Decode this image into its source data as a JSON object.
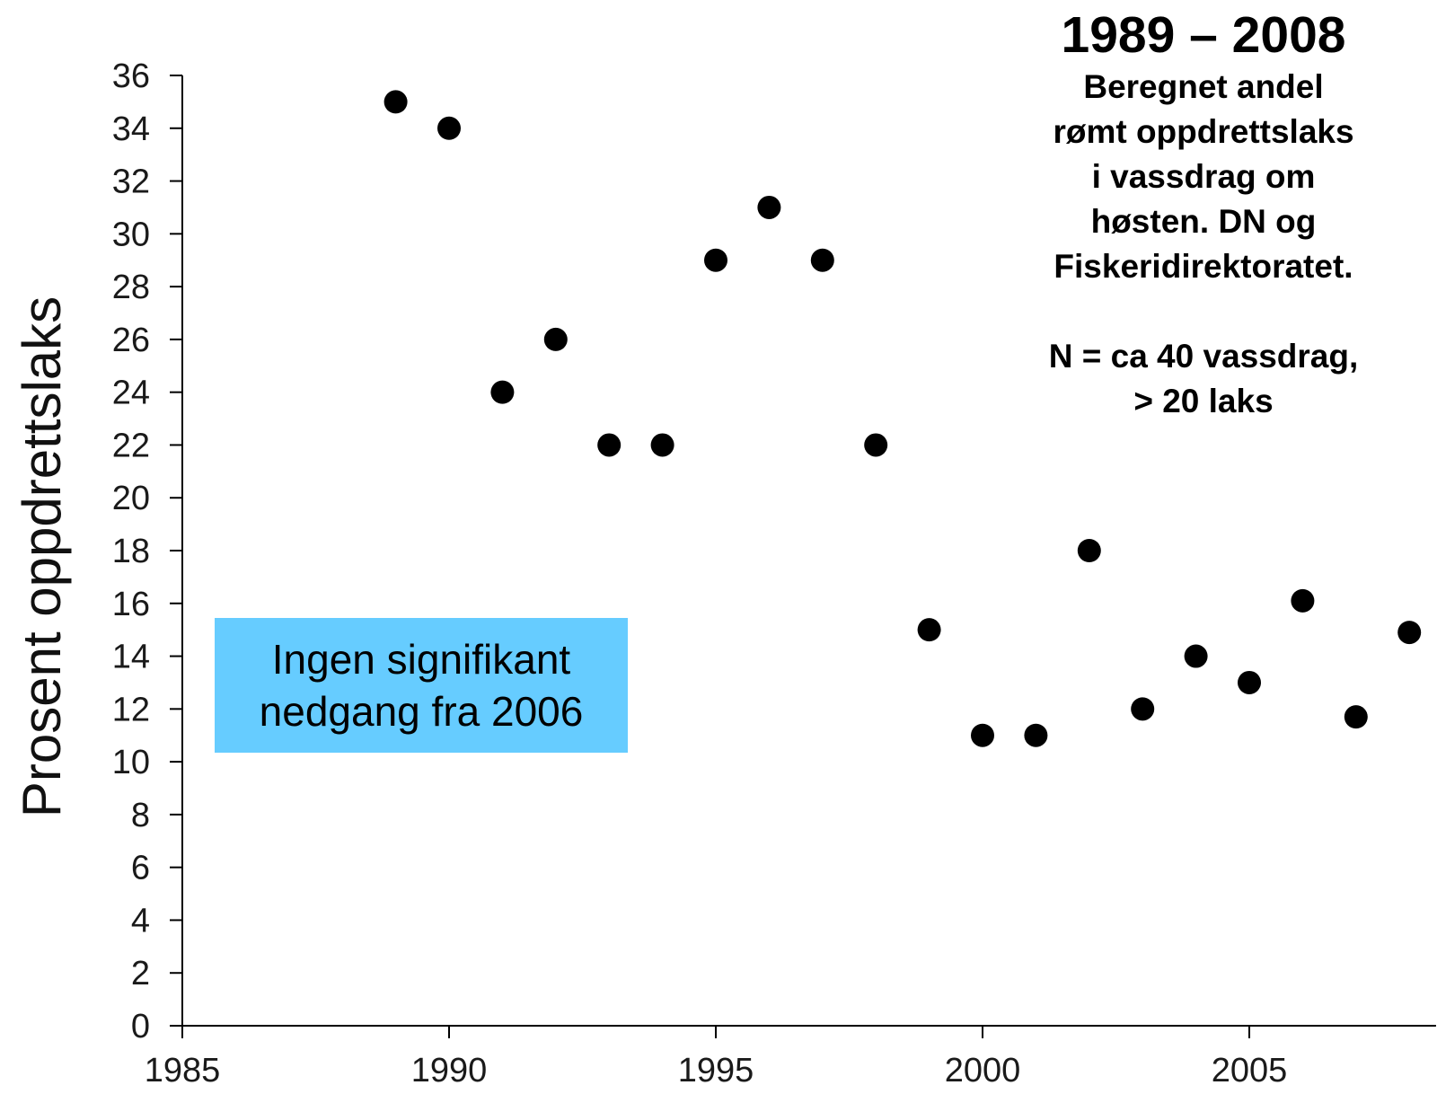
{
  "chart_data": {
    "type": "scatter",
    "ylabel": "Prosent oppdrettslaks",
    "xlabel": "",
    "xlim": [
      1985,
      2008.5
    ],
    "ylim": [
      0,
      36
    ],
    "x_ticks": [
      1985,
      1990,
      1995,
      2000,
      2005
    ],
    "y_ticks": [
      0,
      2,
      4,
      6,
      8,
      10,
      12,
      14,
      16,
      18,
      20,
      22,
      24,
      26,
      28,
      30,
      32,
      34,
      36
    ],
    "grid": false,
    "points": [
      {
        "x": 1989,
        "y": 35
      },
      {
        "x": 1990,
        "y": 34
      },
      {
        "x": 1991,
        "y": 24
      },
      {
        "x": 1992,
        "y": 26
      },
      {
        "x": 1993,
        "y": 22
      },
      {
        "x": 1994,
        "y": 22
      },
      {
        "x": 1995,
        "y": 29
      },
      {
        "x": 1996,
        "y": 31
      },
      {
        "x": 1997,
        "y": 29
      },
      {
        "x": 1998,
        "y": 22
      },
      {
        "x": 1999,
        "y": 15
      },
      {
        "x": 2000,
        "y": 11
      },
      {
        "x": 2001,
        "y": 11
      },
      {
        "x": 2002,
        "y": 18
      },
      {
        "x": 2003,
        "y": 12
      },
      {
        "x": 2004,
        "y": 14
      },
      {
        "x": 2005,
        "y": 13
      },
      {
        "x": 2006,
        "y": 16.1
      },
      {
        "x": 2007,
        "y": 11.7
      },
      {
        "x": 2008,
        "y": 14.9
      }
    ],
    "marker_color": "#000000"
  },
  "title_block": {
    "title": "1989 – 2008",
    "lines": [
      "Beregnet andel",
      "rømt oppdrettslaks",
      "i vassdrag om",
      "høsten. DN og",
      "Fiskeridirektoratet."
    ],
    "n_lines": [
      "N = ca 40 vassdrag,",
      "> 20 laks"
    ]
  },
  "annotation": {
    "line1": "Ingen signifikant",
    "line2": "nedgang fra 2006",
    "background": "#66ccff"
  }
}
